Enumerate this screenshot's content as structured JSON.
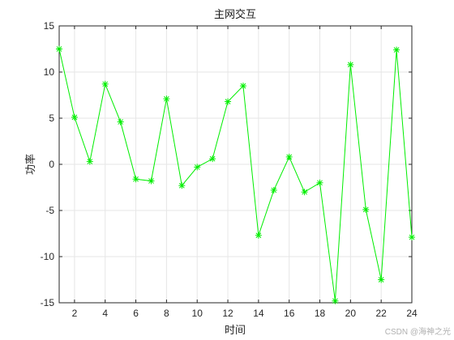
{
  "chart_data": {
    "type": "line",
    "title": "主网交互",
    "xlabel": "时间",
    "ylabel": "功率",
    "xlim": [
      1,
      24
    ],
    "ylim": [
      -15,
      15
    ],
    "xticks": [
      2,
      4,
      6,
      8,
      10,
      12,
      14,
      16,
      18,
      20,
      22,
      24
    ],
    "yticks": [
      -15,
      -10,
      -5,
      0,
      5,
      10,
      15
    ],
    "grid": true,
    "marker": "asterisk",
    "line_color": "#00ee00",
    "series": [
      {
        "x": [
          1,
          2,
          3,
          4,
          5,
          6,
          7,
          8,
          9,
          10,
          11,
          12,
          13,
          14,
          15,
          16,
          17,
          18,
          19,
          20,
          21,
          22,
          23,
          24
        ],
        "values": [
          12.5,
          5.1,
          0.3,
          8.7,
          4.6,
          -1.6,
          -1.8,
          7.1,
          -2.3,
          -0.3,
          0.6,
          6.8,
          8.5,
          -7.7,
          -2.8,
          0.8,
          -3.0,
          -2.0,
          -14.8,
          10.8,
          -4.9,
          -12.5,
          12.4,
          -7.9
        ]
      }
    ]
  },
  "watermark": "CSDN @海神之光"
}
